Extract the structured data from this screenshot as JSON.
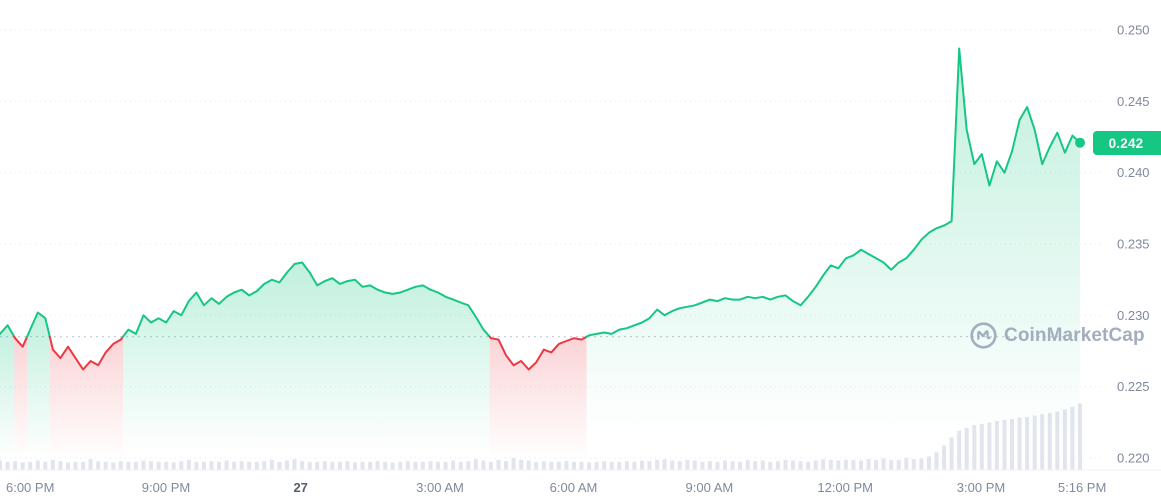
{
  "watermark": {
    "text": "CoinMarketCap"
  },
  "current_price": {
    "label": "0.242"
  },
  "colors": {
    "up": "#16c784",
    "down": "#ea3943",
    "volume": "#e2e5ee",
    "axis_text": "#808a9d",
    "axis_text_emphasis": "#57606d",
    "baseline": "#b9c1d2",
    "grid": "#e3e8f0",
    "badge_bg": "#16c784",
    "badge_text": "#ffffff"
  },
  "chart_data": {
    "type": "line",
    "title": "24h cryptocurrency price chart with volume",
    "open_price": 0.2285,
    "current_price": 0.2421,
    "y_axis": {
      "min": 0.22,
      "max": 0.25,
      "tick_values": [
        0.25,
        0.245,
        0.24,
        0.235,
        0.23,
        0.225,
        0.22
      ],
      "tick_labels": [
        "0.250",
        "0.245",
        "0.240",
        "0.235",
        "0.230",
        "0.225",
        "0.220"
      ]
    },
    "x_ticks": [
      {
        "label": "6:00 PM",
        "pos": 0.026
      },
      {
        "label": "9:00 PM",
        "pos": 0.143
      },
      {
        "label": "27",
        "pos": 0.259,
        "emphasis": true
      },
      {
        "label": "3:00 AM",
        "pos": 0.379
      },
      {
        "label": "6:00 AM",
        "pos": 0.494
      },
      {
        "label": "9:00 AM",
        "pos": 0.611
      },
      {
        "label": "12:00 PM",
        "pos": 0.728
      },
      {
        "label": "3:00 PM",
        "pos": 0.845
      },
      {
        "label": "5:16 PM",
        "pos": 0.932
      }
    ],
    "prices": [
      0.2287,
      0.2293,
      0.2284,
      0.2278,
      0.229,
      0.2302,
      0.2298,
      0.2276,
      0.227,
      0.2278,
      0.227,
      0.2262,
      0.2268,
      0.2265,
      0.2274,
      0.228,
      0.2283,
      0.229,
      0.2287,
      0.23,
      0.2295,
      0.2298,
      0.2295,
      0.2303,
      0.23,
      0.231,
      0.2316,
      0.2307,
      0.2312,
      0.2308,
      0.2313,
      0.2316,
      0.2318,
      0.2314,
      0.2317,
      0.2322,
      0.2325,
      0.2323,
      0.233,
      0.2336,
      0.2337,
      0.233,
      0.2321,
      0.2324,
      0.2326,
      0.2322,
      0.2324,
      0.2325,
      0.232,
      0.2321,
      0.2318,
      0.2316,
      0.2315,
      0.2316,
      0.2318,
      0.232,
      0.2321,
      0.2318,
      0.2316,
      0.2313,
      0.2311,
      0.2309,
      0.2307,
      0.2299,
      0.229,
      0.2284,
      0.2283,
      0.2272,
      0.2265,
      0.2268,
      0.2262,
      0.2267,
      0.2276,
      0.2274,
      0.228,
      0.2282,
      0.2284,
      0.2283,
      0.2286,
      0.2287,
      0.2288,
      0.2287,
      0.229,
      0.2291,
      0.2293,
      0.2295,
      0.2298,
      0.2304,
      0.23,
      0.2303,
      0.2305,
      0.2306,
      0.2307,
      0.2309,
      0.2311,
      0.231,
      0.2312,
      0.2311,
      0.2311,
      0.2313,
      0.2312,
      0.2313,
      0.2311,
      0.2313,
      0.2314,
      0.231,
      0.2307,
      0.2313,
      0.232,
      0.2328,
      0.2335,
      0.2333,
      0.234,
      0.2342,
      0.2346,
      0.2343,
      0.234,
      0.2337,
      0.2332,
      0.2337,
      0.234,
      0.2346,
      0.2353,
      0.2358,
      0.2361,
      0.2363,
      0.2366,
      0.2487,
      0.243,
      0.2406,
      0.2413,
      0.2391,
      0.2408,
      0.24,
      0.2415,
      0.2437,
      0.2446,
      0.243,
      0.2406,
      0.2418,
      0.2428,
      0.2414,
      0.2426,
      0.2421
    ],
    "volume": [
      14,
      12,
      13,
      11,
      12,
      14,
      12,
      15,
      13,
      11,
      12,
      12,
      16,
      13,
      12,
      11,
      13,
      12,
      12,
      14,
      13,
      12,
      12,
      11,
      13,
      15,
      12,
      12,
      13,
      12,
      14,
      12,
      13,
      12,
      12,
      13,
      15,
      12,
      14,
      16,
      13,
      12,
      12,
      13,
      12,
      12,
      13,
      11,
      12,
      12,
      13,
      12,
      11,
      12,
      13,
      12,
      12,
      13,
      12,
      12,
      14,
      12,
      13,
      16,
      14,
      12,
      15,
      13,
      18,
      15,
      14,
      12,
      13,
      12,
      12,
      13,
      12,
      12,
      11,
      12,
      13,
      12,
      12,
      13,
      12,
      14,
      13,
      15,
      16,
      14,
      13,
      15,
      14,
      12,
      13,
      12,
      14,
      13,
      12,
      15,
      13,
      14,
      12,
      13,
      15,
      14,
      13,
      12,
      14,
      16,
      15,
      14,
      15,
      15,
      14,
      16,
      15,
      17,
      15,
      15,
      18,
      16,
      17,
      20,
      26,
      36,
      48,
      58,
      62,
      66,
      68,
      70,
      72,
      74,
      75,
      77,
      78,
      80,
      82,
      84,
      86,
      89,
      93,
      98
    ]
  }
}
